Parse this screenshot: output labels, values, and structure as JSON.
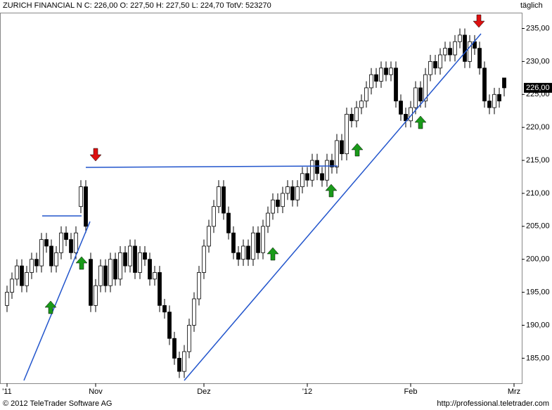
{
  "header": {
    "title": "ZURICH FINANCIAL N C: 226,00 O: 227,50 H: 227,50 L: 224,70 TotV: 523270",
    "period": "täglich"
  },
  "footer": {
    "copyright": "© 2012 TeleTrader Software AG",
    "url": "http://professional.teletrader.com"
  },
  "chart_data": {
    "type": "candlestick",
    "open": [
      193,
      195,
      197,
      199,
      196,
      198,
      200,
      199,
      203,
      202,
      199,
      201,
      204,
      203,
      201,
      208,
      211,
      200,
      193,
      196,
      199,
      196,
      200,
      197,
      201,
      199,
      202,
      198,
      201,
      200,
      197,
      198,
      193,
      192,
      188,
      185,
      183,
      186,
      190,
      194,
      198,
      202,
      205,
      208,
      211,
      207,
      204,
      201,
      200,
      202,
      200,
      204,
      201,
      205,
      207,
      209,
      208,
      210,
      211,
      209,
      211,
      213,
      212,
      215,
      213,
      212,
      215,
      214,
      218,
      216,
      222,
      221,
      223,
      224,
      226,
      228,
      227,
      229,
      228,
      229,
      224,
      222,
      221,
      223,
      226,
      224,
      228,
      230,
      229,
      231,
      232,
      231,
      233,
      234,
      230,
      233,
      232,
      229,
      224,
      223,
      225,
      227.5
    ],
    "high": [
      196,
      198,
      200,
      200,
      199,
      201,
      201,
      204,
      204,
      203,
      202,
      205,
      205,
      204,
      205,
      212,
      212,
      201,
      197,
      200,
      200,
      201,
      201,
      202,
      202,
      203,
      203,
      202,
      202,
      201,
      199,
      199,
      194,
      193,
      189,
      186,
      187,
      191,
      195,
      199,
      203,
      206,
      209,
      212,
      212,
      208,
      205,
      202,
      203,
      203,
      205,
      205,
      206,
      208,
      210,
      210,
      211,
      212,
      212,
      212,
      214,
      214,
      216,
      216,
      214,
      216,
      216,
      219,
      219,
      223,
      223,
      224,
      225,
      227,
      229,
      229,
      230,
      230,
      230,
      230,
      225,
      223,
      224,
      227,
      227,
      229,
      231,
      231,
      232,
      233,
      233,
      234,
      235,
      235,
      234,
      234,
      233,
      230,
      225,
      226,
      226,
      227.5
    ],
    "low": [
      192,
      194,
      196,
      195,
      195,
      197,
      198,
      198,
      201,
      198,
      198,
      200,
      202,
      200,
      200,
      207,
      204,
      192,
      192,
      195,
      195,
      195,
      196,
      196,
      198,
      198,
      197,
      197,
      199,
      196,
      196,
      192,
      191,
      187,
      184,
      182,
      182,
      185,
      189,
      193,
      197,
      201,
      204,
      207,
      206,
      203,
      200,
      199,
      199,
      199,
      199,
      200,
      200,
      204,
      206,
      207,
      207,
      209,
      208,
      208,
      210,
      211,
      211,
      212,
      211,
      211,
      213,
      213,
      215,
      215,
      220,
      220,
      222,
      223,
      225,
      226,
      226,
      227,
      227,
      223,
      221,
      220,
      220,
      222,
      223,
      223,
      227,
      228,
      228,
      230,
      230,
      230,
      232,
      229,
      229,
      231,
      228,
      223,
      222,
      222,
      223,
      224.7
    ],
    "close": [
      195,
      197,
      199,
      196,
      198,
      200,
      199,
      203,
      202,
      199,
      201,
      204,
      203,
      201,
      204,
      211,
      205,
      193,
      196,
      199,
      196,
      200,
      197,
      201,
      199,
      202,
      198,
      201,
      200,
      197,
      198,
      193,
      192,
      188,
      185,
      183,
      186,
      190,
      194,
      198,
      202,
      205,
      208,
      211,
      207,
      204,
      201,
      200,
      202,
      200,
      204,
      201,
      205,
      207,
      209,
      208,
      210,
      211,
      209,
      211,
      213,
      212,
      215,
      213,
      212,
      215,
      214,
      218,
      216,
      222,
      221,
      223,
      224,
      226,
      228,
      227,
      229,
      228,
      229,
      224,
      222,
      221,
      223,
      226,
      224,
      228,
      230,
      229,
      231,
      232,
      231,
      233,
      234,
      230,
      233,
      232,
      229,
      224,
      223,
      225,
      224,
      226
    ],
    "xlim": [
      -1.43,
      104.57
    ],
    "xticks": [
      {
        "value": 0,
        "label": "'11"
      },
      {
        "value": 18,
        "label": "Nov"
      },
      {
        "value": 40,
        "label": "Dez"
      },
      {
        "value": 61,
        "label": "'12"
      },
      {
        "value": 82,
        "label": "Feb"
      },
      {
        "value": 103,
        "label": "Mrz"
      }
    ],
    "ylim": [
      181.2,
      237.4
    ],
    "yticks": [
      {
        "value": 185,
        "label": "185,00"
      },
      {
        "value": 190,
        "label": "190,00"
      },
      {
        "value": 195,
        "label": "195,00"
      },
      {
        "value": 200,
        "label": "200,00"
      },
      {
        "value": 205,
        "label": "205,00"
      },
      {
        "value": 210,
        "label": "210,00"
      },
      {
        "value": 215,
        "label": "215,00"
      },
      {
        "value": 220,
        "label": "220,00"
      },
      {
        "value": 225,
        "label": "225,00"
      },
      {
        "value": 230,
        "label": "230,00"
      },
      {
        "value": 235,
        "label": "235,00"
      }
    ],
    "last_price": {
      "value": 226,
      "label": "226,00"
    },
    "up_color": "#ffffff",
    "down_color": "#000000"
  }
}
